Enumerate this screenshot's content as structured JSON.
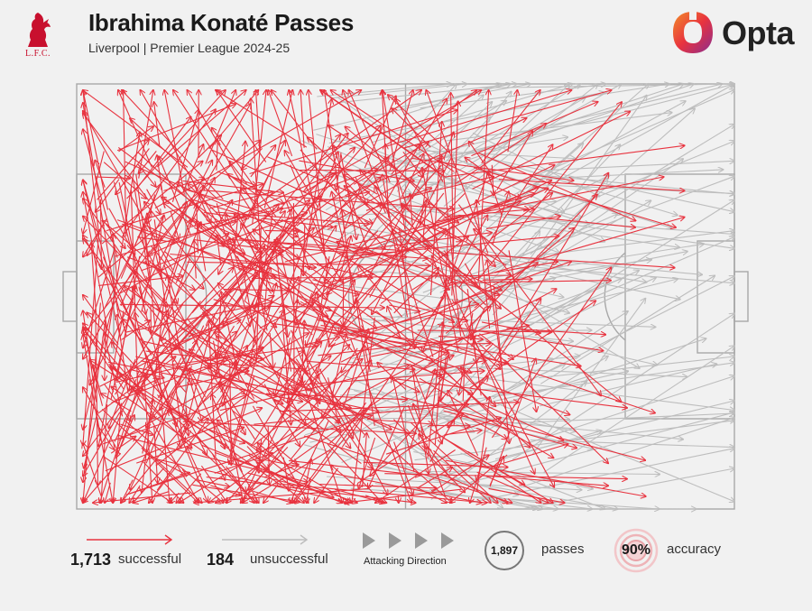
{
  "header": {
    "title": "Ibrahima Konaté Passes",
    "subtitle": "Liverpool | Premier League 2024-25",
    "club_crest_text": "L.F.C.",
    "brand": "Opta"
  },
  "colors": {
    "successful": "#e8333f",
    "unsuccessful": "#bdbdbd",
    "pitch_lines": "#a8a8a8",
    "background": "#f1f1f1",
    "club": "#c8102e"
  },
  "legend": {
    "successful_count": "1,713",
    "successful_label": "successful",
    "unsuccessful_count": "184",
    "unsuccessful_label": "unsuccessful",
    "direction_label": "Attacking Direction",
    "total_passes": "1,897",
    "passes_label": "passes",
    "accuracy_value": "90%",
    "accuracy_label": "accuracy"
  },
  "chart_data": {
    "type": "pass map",
    "pitch": {
      "length": 105,
      "width": 68,
      "attacking_direction": "left-to-right"
    },
    "total_passes": 1897,
    "successful": 1713,
    "unsuccessful": 184,
    "accuracy_pct": 90,
    "rendered_sample": {
      "seed": 20250,
      "successful": 760,
      "unsuccessful": 150
    }
  }
}
